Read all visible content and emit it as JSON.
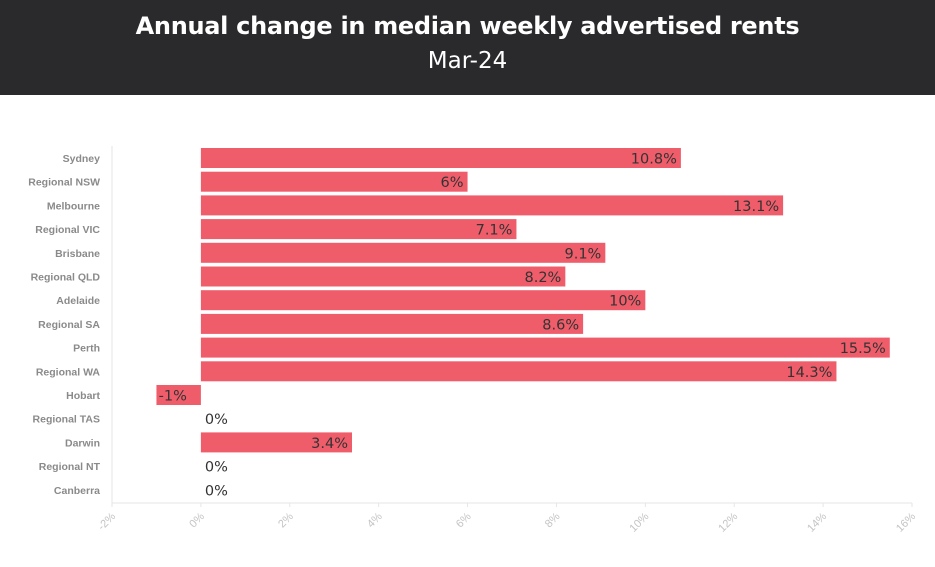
{
  "header": {
    "title": "Annual change in median weekly advertised rents",
    "subtitle": "Mar-24"
  },
  "chart_data": {
    "type": "bar",
    "orientation": "horizontal",
    "title": "Annual change in median weekly advertised rents",
    "subtitle": "Mar-24",
    "categories": [
      "Sydney",
      "Regional NSW",
      "Melbourne",
      "Regional VIC",
      "Brisbane",
      "Regional QLD",
      "Adelaide",
      "Regional SA",
      "Perth",
      "Regional WA",
      "Hobart",
      "Regional TAS",
      "Darwin",
      "Regional NT",
      "Canberra"
    ],
    "values": [
      10.8,
      6,
      13.1,
      7.1,
      9.1,
      8.2,
      10,
      8.6,
      15.5,
      14.3,
      -1,
      0,
      3.4,
      0,
      0
    ],
    "data_labels": [
      "10.8%",
      "6%",
      "13.1%",
      "7.1%",
      "9.1%",
      "8.2%",
      "10%",
      "8.6%",
      "15.5%",
      "14.3%",
      "-1%",
      "0%",
      "3.4%",
      "0%",
      "0%"
    ],
    "xlim": [
      -2,
      16
    ],
    "x_ticks": [
      -2,
      0,
      2,
      4,
      6,
      8,
      10,
      12,
      14,
      16
    ],
    "x_tick_labels": [
      "-2%",
      "0%",
      "2%",
      "4%",
      "6%",
      "8%",
      "10%",
      "12%",
      "14%",
      "16%"
    ],
    "xlabel": "",
    "ylabel": "",
    "bar_color": "#ef5d6b",
    "grid": false,
    "legend": "none"
  }
}
